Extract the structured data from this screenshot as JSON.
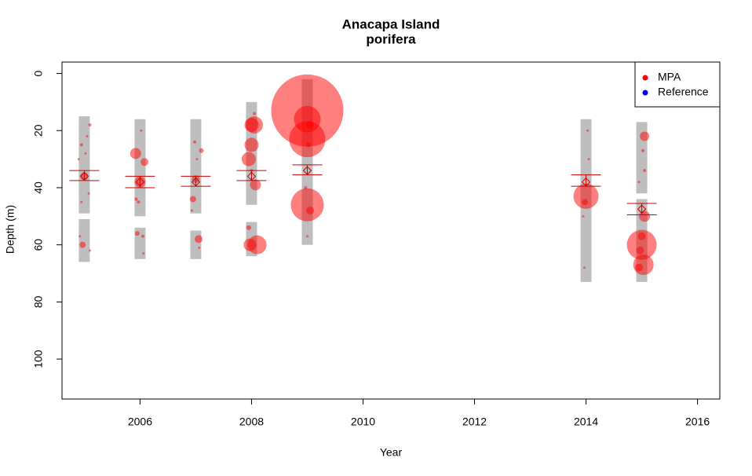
{
  "chart_data": {
    "type": "scatter",
    "title": "Anacapa Island",
    "subtitle": "porifera",
    "x_label": "Year",
    "y_label": "Depth (m)",
    "xlim": [
      2004.6,
      2016.4
    ],
    "ylim": [
      114,
      -4
    ],
    "xticks": [
      2006,
      2008,
      2010,
      2012,
      2014,
      2016
    ],
    "yticks": [
      0,
      20,
      40,
      60,
      80,
      100
    ],
    "legend": "top-right",
    "series": [
      {
        "name": "MPA",
        "color": "#ff0000",
        "x": [
          2005.0,
          2004.95,
          2005.1,
          2004.9,
          2005.05,
          2004.97,
          2005.08,
          2004.92,
          2005.1,
          2004.95,
          2005.02,
          2005.92,
          2006.0,
          2006.08,
          2005.95,
          2006.05,
          2005.97,
          2006.02,
          2006.06,
          2005.93,
          2007.0,
          2006.95,
          2007.05,
          2007.1,
          2006.98,
          2007.02,
          2007.06,
          2006.93,
          2008.0,
          2008.05,
          2008.0,
          2007.95,
          2008.07,
          2008.1,
          2007.97,
          2007.95,
          2008.0,
          2008.05,
          2009.0,
          2009.0,
          2009.0,
          2009.0,
          2009.05,
          2009.02,
          2009.05,
          2008.97,
          2009.0,
          2014.0,
          2013.98,
          2014.05,
          2013.95,
          2014.03,
          2013.97,
          2015.05,
          2015.0,
          2015.03,
          2014.95,
          2015.0,
          2015.05,
          2014.97,
          2015.02,
          2015.05,
          2014.95
        ],
        "values": [
          36,
          25,
          18,
          30,
          22,
          60,
          42,
          57,
          62,
          45,
          28,
          28,
          38,
          31,
          56,
          57,
          45,
          20,
          63,
          44,
          37,
          44,
          58,
          27,
          24,
          30,
          61,
          48,
          18,
          18,
          25,
          30,
          39,
          60,
          60,
          54,
          34,
          14,
          13,
          23,
          16,
          46,
          48,
          25,
          18,
          40,
          57,
          43,
          45,
          30,
          50,
          20,
          68,
          22,
          60,
          67,
          68,
          57,
          50,
          62,
          27,
          34,
          38
        ],
        "sizes": [
          5,
          2,
          2,
          1.5,
          1.5,
          4,
          1.5,
          1.5,
          1.5,
          1.5,
          1.5,
          7,
          7,
          5,
          3,
          2,
          2,
          1.5,
          1.5,
          2,
          5,
          4,
          5,
          3,
          2,
          1.5,
          1.5,
          1.5,
          9,
          11,
          9,
          9,
          7,
          12,
          8,
          3,
          2,
          2,
          46,
          23,
          17,
          21,
          5,
          3,
          5,
          2,
          1.5,
          16,
          4,
          1.5,
          1.5,
          1.5,
          1.5,
          6,
          19,
          13,
          5,
          5,
          7,
          5,
          2,
          2,
          1.5
        ]
      },
      {
        "name": "Reference",
        "color": "#0000ff",
        "x": [],
        "values": [],
        "sizes": []
      }
    ],
    "ranges": {
      "color": "#bebebe",
      "x": [
        2005,
        2005,
        2006,
        2006,
        2007,
        2007,
        2008,
        2008,
        2009,
        2014,
        2015,
        2015
      ],
      "low": [
        15,
        51,
        16,
        54,
        16,
        55,
        10,
        52,
        2,
        16,
        17,
        44
      ],
      "high": [
        49,
        66,
        50,
        65,
        49,
        65,
        46,
        64,
        60,
        73,
        42,
        73
      ]
    },
    "means": {
      "color": "#cc0000",
      "x": [
        2005,
        2006,
        2007,
        2008,
        2009,
        2014,
        2015
      ],
      "values": [
        36,
        38,
        38,
        36,
        34,
        38,
        47.5
      ],
      "low": [
        34,
        36,
        36,
        34,
        32,
        35.5,
        45.5
      ],
      "high": [
        37.5,
        40,
        39.5,
        37.5,
        35.5,
        39.5,
        49.5
      ]
    }
  }
}
